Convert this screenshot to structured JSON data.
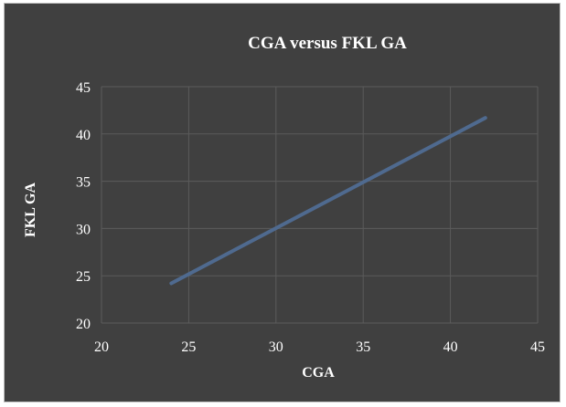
{
  "chart_data": {
    "type": "line",
    "title": "CGA versus FKL GA",
    "xlabel": "CGA",
    "ylabel": "FKL GA",
    "xlim": [
      20,
      45
    ],
    "ylim": [
      20,
      45
    ],
    "x_ticks": [
      "20",
      "25",
      "30",
      "35",
      "40",
      "45"
    ],
    "y_ticks": [
      "20",
      "25",
      "30",
      "35",
      "40",
      "45"
    ],
    "grid": true,
    "legend": "none",
    "series": [
      {
        "points": [
          {
            "x": 24,
            "y": 24.2
          },
          {
            "x": 42,
            "y": 41.7
          }
        ],
        "color": "#4f6a8f"
      }
    ]
  },
  "colors": {
    "background": "#404040",
    "gridline": "#5b5b5b",
    "axis_text": "#ffffff",
    "series": "#4f6a8f"
  }
}
